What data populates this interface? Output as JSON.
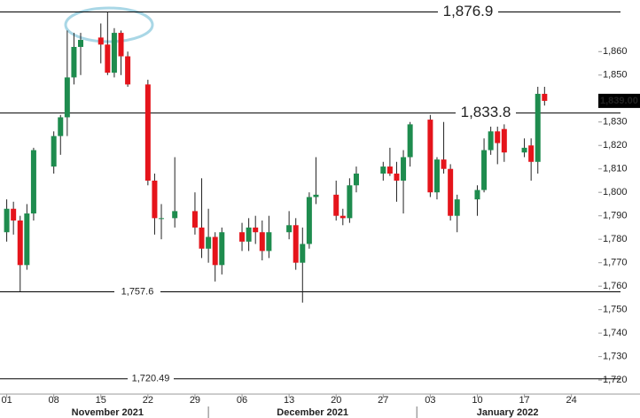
{
  "chart_data": {
    "type": "candlestick",
    "x": [
      "2021-11-01",
      "2021-11-02",
      "2021-11-03",
      "2021-11-04",
      "2021-11-05",
      "2021-11-08",
      "2021-11-09",
      "2021-11-10",
      "2021-11-11",
      "2021-11-12",
      "2021-11-15",
      "2021-11-16",
      "2021-11-17",
      "2021-11-18",
      "2021-11-19",
      "2021-11-22",
      "2021-11-23",
      "2021-11-24",
      "2021-11-26",
      "2021-11-29",
      "2021-11-30",
      "2021-12-01",
      "2021-12-02",
      "2021-12-03",
      "2021-12-06",
      "2021-12-07",
      "2021-12-08",
      "2021-12-09",
      "2021-12-10",
      "2021-12-13",
      "2021-12-14",
      "2021-12-15",
      "2021-12-16",
      "2021-12-17",
      "2021-12-20",
      "2021-12-21",
      "2021-12-22",
      "2021-12-23",
      "2021-12-27",
      "2021-12-28",
      "2021-12-29",
      "2021-12-30",
      "2021-12-31",
      "2022-01-03",
      "2022-01-04",
      "2022-01-05",
      "2022-01-06",
      "2022-01-07",
      "2022-01-10",
      "2022-01-11",
      "2022-01-12",
      "2022-01-13",
      "2022-01-14",
      "2022-01-17",
      "2022-01-18",
      "2022-01-19",
      "2022-01-20"
    ],
    "open": [
      1783,
      1793,
      1788,
      1769,
      1791,
      1811,
      1824,
      1832,
      1849,
      1862,
      1866,
      1863,
      1851,
      1868,
      1858,
      1846,
      1805,
      1789,
      1789,
      1792,
      1785,
      1776,
      1781,
      1769,
      1783,
      1779,
      1785,
      1783,
      1775,
      1783,
      1786,
      1770,
      1778,
      1798,
      1799,
      1790,
      1789,
      1803,
      1808,
      1811,
      1808,
      1805,
      1815,
      1831,
      1800,
      1814,
      1810,
      1790,
      1797,
      1801,
      1818,
      1826,
      1827,
      1817,
      1820,
      1813,
      1842
    ],
    "high": [
      1797,
      1796,
      1790,
      1795,
      1819,
      1826,
      1833,
      1869,
      1868,
      1868,
      1872,
      1876.9,
      1870,
      1869,
      1860,
      1848,
      1808,
      1795,
      1815,
      1800,
      1806,
      1793,
      1783,
      1785,
      1787,
      1789,
      1790,
      1788,
      1790,
      1792,
      1789,
      1785,
      1800,
      1815,
      1805,
      1793,
      1806,
      1811,
      1813,
      1819,
      1813,
      1818,
      1830,
      1833,
      1815,
      1830,
      1812,
      1799,
      1803,
      1823,
      1828,
      1828,
      1829,
      1823,
      1823,
      1845,
      1845
    ],
    "low": [
      1779,
      1782,
      1757.6,
      1767,
      1788,
      1808,
      1816,
      1824,
      1846,
      1850,
      1855,
      1850,
      1849,
      1850,
      1845,
      1803,
      1782,
      1780,
      1785,
      1782,
      1772,
      1770,
      1762,
      1765,
      1775,
      1775,
      1778,
      1771,
      1772,
      1780,
      1767,
      1753,
      1776,
      1795,
      1788,
      1786,
      1787,
      1800,
      1805,
      1807,
      1796,
      1791,
      1811,
      1798,
      1797,
      1808,
      1788,
      1783,
      1790,
      1800,
      1816,
      1812,
      1813,
      1815,
      1805,
      1808,
      1837
    ],
    "close": [
      1793,
      1788,
      1769,
      1791,
      1818,
      1824,
      1832,
      1849,
      1862,
      1865,
      1863,
      1851,
      1868,
      1858,
      1846,
      1805,
      1789,
      1789,
      1792,
      1785,
      1776,
      1781,
      1769,
      1783,
      1779,
      1785,
      1783,
      1775,
      1783,
      1786,
      1770,
      1778,
      1798,
      1799,
      1790,
      1789,
      1803,
      1808,
      1811,
      1808,
      1805,
      1815,
      1829,
      1800,
      1814,
      1810,
      1790,
      1797,
      1801,
      1818,
      1826,
      1821,
      1817,
      1819,
      1813,
      1842,
      1839
    ],
    "up_color": "#1e8c4e",
    "down_color": "#e5141b",
    "xlim": [
      "2021-10-31",
      "2022-01-28"
    ],
    "xticks": [
      {
        "value": "2021-11-01",
        "label": "01"
      },
      {
        "value": "2021-11-08",
        "label": "08"
      },
      {
        "value": "2021-11-15",
        "label": "15"
      },
      {
        "value": "2021-11-22",
        "label": "22"
      },
      {
        "value": "2021-11-29",
        "label": "29"
      },
      {
        "value": "2021-12-06",
        "label": "06"
      },
      {
        "value": "2021-12-13",
        "label": "13"
      },
      {
        "value": "2021-12-20",
        "label": "20"
      },
      {
        "value": "2021-12-27",
        "label": "27"
      },
      {
        "value": "2022-01-03",
        "label": "03"
      },
      {
        "value": "2022-01-10",
        "label": "10"
      },
      {
        "value": "2022-01-17",
        "label": "17"
      },
      {
        "value": "2022-01-24",
        "label": "24"
      }
    ],
    "months": [
      "November 2021",
      "December 2021",
      "January 2022"
    ],
    "ylim": [
      1714,
      1882
    ],
    "yticks": [
      {
        "value": 1720,
        "label": "1,720"
      },
      {
        "value": 1730,
        "label": "1,730"
      },
      {
        "value": 1740,
        "label": "1,740"
      },
      {
        "value": 1750,
        "label": "1,750"
      },
      {
        "value": 1760,
        "label": "1,760"
      },
      {
        "value": 1770,
        "label": "1,770"
      },
      {
        "value": 1780,
        "label": "1,780"
      },
      {
        "value": 1790,
        "label": "1,790"
      },
      {
        "value": 1800,
        "label": "1,800"
      },
      {
        "value": 1810,
        "label": "1,810"
      },
      {
        "value": 1820,
        "label": "1,820"
      },
      {
        "value": 1830,
        "label": "1,830"
      },
      {
        "value": 1850,
        "label": "1,850"
      },
      {
        "value": 1860,
        "label": "1,860"
      }
    ],
    "levels": [
      {
        "value": 1876.9,
        "label": "1,876.9"
      },
      {
        "value": 1833.8,
        "label": "1,833.8"
      },
      {
        "value": 1757.6,
        "label": "1,757.6"
      },
      {
        "value": 1720.49,
        "label": "1,720.49"
      }
    ],
    "last_price": {
      "value": 1839,
      "label": "1,839.00"
    }
  }
}
